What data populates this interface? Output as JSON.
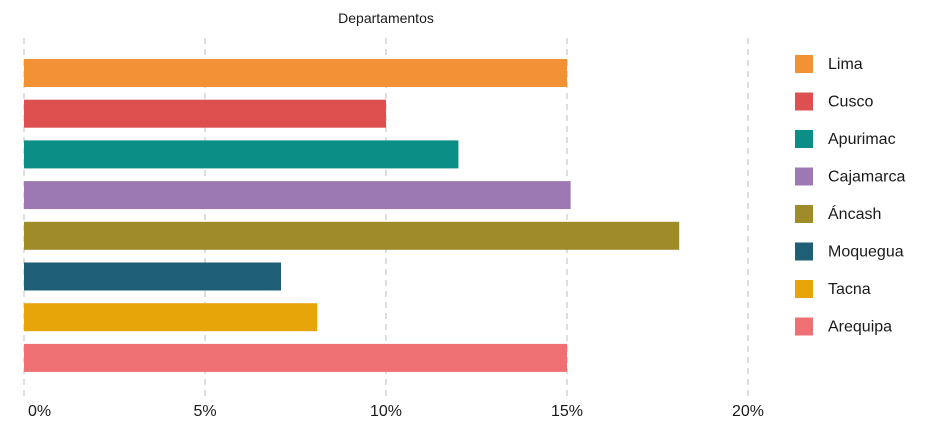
{
  "chart_data": {
    "type": "bar",
    "orientation": "horizontal",
    "title": "Departamentos",
    "categories": [
      "Lima",
      "Cusco",
      "Apurimac",
      "Cajamarca",
      "Áncash",
      "Moquegua",
      "Tacna",
      "Arequipa"
    ],
    "values": [
      15,
      10,
      12,
      15.1,
      18.1,
      7.1,
      8.1,
      15
    ],
    "colors": [
      "#F39234",
      "#DE5050",
      "#0A8E86",
      "#9D79B4",
      "#9D8C28",
      "#1F5F76",
      "#E8A50A",
      "#EE7072"
    ],
    "xlim": [
      0,
      20
    ],
    "xticks": [
      0,
      5,
      10,
      15,
      20
    ],
    "xtick_labels": [
      "0%",
      "5%",
      "10%",
      "15%",
      "20%"
    ],
    "grid": "vertical-dashed",
    "legend_position": "right"
  }
}
